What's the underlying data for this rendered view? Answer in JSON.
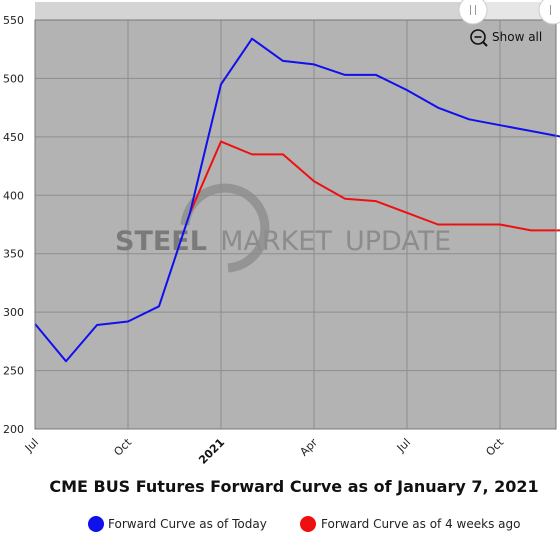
{
  "chart_data": {
    "type": "line",
    "title": "CME BUS Futures Forward Curve as of January 7, 2021",
    "xlabel": "",
    "ylabel": "",
    "x_ticks": [
      "Jul",
      "Oct",
      "2021",
      "Apr",
      "Jul",
      "Oct"
    ],
    "y_ticks": [
      200,
      250,
      300,
      350,
      400,
      450,
      500,
      550
    ],
    "ylim": [
      200,
      550
    ],
    "grid": true,
    "legend_position": "bottom",
    "series": [
      {
        "name": "Forward Curve as of Today",
        "color": "#1010ee",
        "x": [
          "2020-07",
          "2020-08",
          "2020-09",
          "2020-10",
          "2020-11",
          "2020-12",
          "2021-01",
          "2021-02",
          "2021-03",
          "2021-04",
          "2021-05",
          "2021-06",
          "2021-07",
          "2021-08",
          "2021-09",
          "2021-10",
          "2021-11",
          "2021-12"
        ],
        "values": [
          290,
          258,
          289,
          292,
          305,
          385,
          495,
          534,
          515,
          512,
          503,
          503,
          490,
          475,
          465,
          460,
          455,
          450
        ]
      },
      {
        "name": "Forward Curve as of 4 weeks ago",
        "color": "#ee1010",
        "x": [
          "2020-12",
          "2021-01",
          "2021-02",
          "2021-03",
          "2021-04",
          "2021-05",
          "2021-06",
          "2021-07",
          "2021-08",
          "2021-09",
          "2021-10",
          "2021-11",
          "2021-12"
        ],
        "values": [
          385,
          446,
          435,
          435,
          412,
          397,
          395,
          385,
          375,
          375,
          375,
          370,
          370
        ]
      }
    ]
  },
  "controls": {
    "show_all_label": "Show all",
    "zoom_icon": "zoom-out-icon",
    "handle_icon": "range-handle-icon"
  },
  "watermark": {
    "bold": "STEEL",
    "light": "MARKET",
    "last": "UPDATE"
  }
}
